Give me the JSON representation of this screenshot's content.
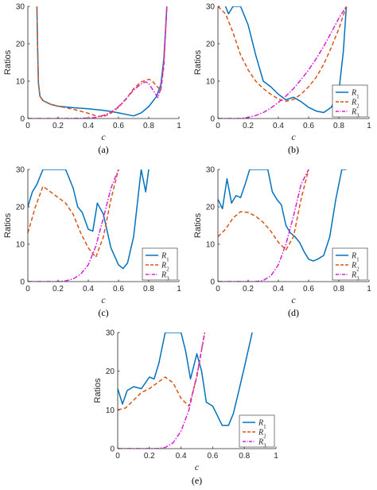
{
  "colors": {
    "R1": "#0072BD",
    "R2": "#D95319",
    "R3": "#D622D6",
    "axis": "#262626"
  },
  "chart_data": [
    {
      "panel": "(a)",
      "type": "line",
      "xlabel": "c",
      "ylabel": "Ratios",
      "xlim": [
        0,
        1
      ],
      "ylim": [
        0,
        30
      ],
      "xticks": [
        "0",
        "0.2",
        "0.4",
        "0.6",
        "0.8",
        "1"
      ],
      "yticks": [
        "0",
        "10",
        "20",
        "30"
      ],
      "legend": null,
      "series": [
        {
          "name": "R1",
          "x": [
            0.06,
            0.065,
            0.07,
            0.08,
            0.1,
            0.15,
            0.2,
            0.3,
            0.4,
            0.5,
            0.55,
            0.6,
            0.65,
            0.7,
            0.75,
            0.8,
            0.85,
            0.88,
            0.9,
            0.92
          ],
          "y": [
            30,
            18,
            9.5,
            6,
            4.8,
            3.8,
            3.3,
            2.9,
            2.6,
            2.2,
            1.9,
            1.5,
            1.1,
            0.7,
            1.5,
            3.2,
            5.8,
            9,
            16,
            30
          ]
        },
        {
          "name": "R2",
          "x": [
            0.06,
            0.065,
            0.07,
            0.08,
            0.1,
            0.15,
            0.2,
            0.3,
            0.4,
            0.45,
            0.5,
            0.55,
            0.6,
            0.65,
            0.7,
            0.75,
            0.8,
            0.82,
            0.85,
            0.88,
            0.9,
            0.92
          ],
          "y": [
            30,
            18,
            9.5,
            6,
            4.8,
            3.8,
            3.3,
            2.5,
            1.4,
            0.7,
            0.5,
            1.4,
            3,
            5.2,
            8,
            9.8,
            10.5,
            10.2,
            8.8,
            7.5,
            14,
            30
          ]
        },
        {
          "name": "R3",
          "x": [
            0,
            0.2,
            0.3,
            0.4,
            0.45,
            0.5,
            0.55,
            0.6,
            0.65,
            0.7,
            0.75,
            0.78,
            0.8,
            0.83,
            0.86,
            0.88,
            0.9,
            0.92
          ],
          "y": [
            0,
            0,
            0.02,
            0.1,
            0.3,
            0.8,
            1.7,
            3.2,
            5.3,
            7.6,
            9.3,
            9.8,
            9.4,
            7.5,
            5.6,
            8,
            15,
            30
          ]
        }
      ]
    },
    {
      "panel": "(b)",
      "type": "line",
      "xlabel": "c",
      "ylabel": "Ratios",
      "xlim": [
        0,
        1
      ],
      "ylim": [
        0,
        30
      ],
      "xticks": [
        "0",
        "0.2",
        "0.4",
        "0.6",
        "0.8",
        "1"
      ],
      "yticks": [
        "0",
        "10",
        "20",
        "30"
      ],
      "legend": "bottom-right",
      "series": [
        {
          "name": "R1",
          "x": [
            0.05,
            0.07,
            0.1,
            0.15,
            0.2,
            0.25,
            0.3,
            0.35,
            0.4,
            0.45,
            0.5,
            0.55,
            0.6,
            0.65,
            0.7,
            0.75,
            0.8,
            0.83,
            0.85
          ],
          "y": [
            30,
            28,
            30,
            30,
            25,
            17,
            10,
            8.5,
            6.5,
            5,
            5.7,
            4.5,
            3,
            2,
            1.6,
            3,
            7,
            18,
            30
          ]
        },
        {
          "name": "R2",
          "x": [
            0,
            0.05,
            0.1,
            0.15,
            0.2,
            0.25,
            0.3,
            0.35,
            0.4,
            0.45,
            0.5,
            0.55,
            0.6,
            0.65,
            0.7,
            0.75,
            0.8,
            0.85
          ],
          "y": [
            30,
            28,
            23,
            17,
            13,
            10,
            8,
            6.5,
            5.2,
            4.6,
            5.1,
            6.5,
            8.5,
            11,
            14.5,
            19,
            24,
            30
          ]
        },
        {
          "name": "R3",
          "x": [
            0,
            0.15,
            0.2,
            0.25,
            0.3,
            0.35,
            0.4,
            0.45,
            0.5,
            0.55,
            0.6,
            0.65,
            0.7,
            0.75,
            0.8,
            0.85
          ],
          "y": [
            0,
            0,
            0.3,
            0.8,
            1.6,
            2.8,
            4.3,
            6,
            8,
            10.4,
            13,
            16,
            19.3,
            23,
            26.8,
            30
          ]
        }
      ]
    },
    {
      "panel": "(c)",
      "type": "line",
      "xlabel": "c",
      "ylabel": "Ratios",
      "xlim": [
        0,
        1
      ],
      "ylim": [
        0,
        30
      ],
      "xticks": [
        "0",
        "0.2",
        "0.4",
        "0.6",
        "0.8",
        "1"
      ],
      "yticks": [
        "0",
        "10",
        "20",
        "30"
      ],
      "legend": "bottom-right",
      "series": [
        {
          "name": "R1",
          "x": [
            0,
            0.03,
            0.06,
            0.1,
            0.15,
            0.2,
            0.25,
            0.3,
            0.33,
            0.36,
            0.4,
            0.43,
            0.46,
            0.5,
            0.55,
            0.6,
            0.63,
            0.66,
            0.7,
            0.75,
            0.78,
            0.8
          ],
          "y": [
            20,
            24,
            26,
            30,
            30,
            30,
            30,
            25,
            20,
            18.5,
            14,
            13.5,
            21,
            18,
            9,
            4.5,
            3.5,
            5,
            12,
            30,
            24,
            30
          ]
        },
        {
          "name": "R2",
          "x": [
            0,
            0.05,
            0.1,
            0.15,
            0.2,
            0.25,
            0.3,
            0.35,
            0.4,
            0.45,
            0.5,
            0.55,
            0.6
          ],
          "y": [
            13,
            20,
            25.5,
            24,
            22.5,
            21,
            18,
            13,
            9,
            6.5,
            12,
            22,
            30
          ]
        },
        {
          "name": "R3",
          "x": [
            0,
            0.2,
            0.25,
            0.3,
            0.35,
            0.4,
            0.45,
            0.5,
            0.55,
            0.6
          ],
          "y": [
            0,
            0,
            0.2,
            0.7,
            2,
            4.5,
            9.5,
            17,
            25,
            30
          ]
        }
      ]
    },
    {
      "panel": "(d)",
      "type": "line",
      "xlabel": "c",
      "ylabel": "Ratios",
      "xlim": [
        0,
        1
      ],
      "ylim": [
        0,
        30
      ],
      "xticks": [
        "0",
        "0.2",
        "0.4",
        "0.6",
        "0.8",
        "1"
      ],
      "yticks": [
        "0",
        "10",
        "20",
        "30"
      ],
      "legend": "bottom-right",
      "series": [
        {
          "name": "R1",
          "x": [
            0,
            0.03,
            0.06,
            0.09,
            0.12,
            0.15,
            0.18,
            0.21,
            0.24,
            0.27,
            0.3,
            0.33,
            0.36,
            0.39,
            0.42,
            0.45,
            0.48,
            0.51,
            0.54,
            0.57,
            0.6,
            0.63,
            0.66,
            0.7,
            0.74,
            0.78,
            0.82,
            0.85
          ],
          "y": [
            22,
            19.5,
            27.5,
            21,
            23,
            22.5,
            26,
            30,
            30,
            30,
            30,
            30,
            24,
            22,
            20.5,
            15,
            13,
            12,
            10.5,
            8,
            6,
            5.5,
            6,
            7,
            12,
            22,
            30,
            30
          ]
        },
        {
          "name": "R2",
          "x": [
            0,
            0.05,
            0.1,
            0.15,
            0.2,
            0.25,
            0.3,
            0.35,
            0.4,
            0.45,
            0.5,
            0.55,
            0.6
          ],
          "y": [
            12,
            14,
            17,
            18.7,
            18.5,
            17.5,
            15.8,
            13.5,
            10.5,
            8.5,
            12,
            22,
            30
          ]
        },
        {
          "name": "R3",
          "x": [
            0,
            0.25,
            0.3,
            0.35,
            0.4,
            0.45,
            0.5,
            0.55,
            0.6
          ],
          "y": [
            0,
            0,
            0.3,
            1.5,
            4.5,
            10,
            17.5,
            26,
            30
          ]
        }
      ]
    },
    {
      "panel": "(e)",
      "type": "line",
      "xlabel": "c",
      "ylabel": "Ratios",
      "xlim": [
        0,
        1
      ],
      "ylim": [
        0,
        30
      ],
      "xticks": [
        "0",
        "0.2",
        "0.4",
        "0.6",
        "0.8",
        "1"
      ],
      "yticks": [
        "0",
        "10",
        "20",
        "30"
      ],
      "legend": "bottom-right",
      "series": [
        {
          "name": "R1",
          "x": [
            0,
            0.03,
            0.06,
            0.1,
            0.15,
            0.2,
            0.23,
            0.26,
            0.3,
            0.33,
            0.36,
            0.4,
            0.43,
            0.46,
            0.5,
            0.53,
            0.56,
            0.6,
            0.63,
            0.66,
            0.7,
            0.73,
            0.76,
            0.8,
            0.85
          ],
          "y": [
            15.5,
            11.5,
            15,
            16,
            15.5,
            18.5,
            18,
            22,
            30,
            30,
            30,
            30,
            25,
            18,
            24.5,
            20,
            12,
            11,
            8.5,
            6,
            6,
            9,
            14,
            21,
            30
          ]
        },
        {
          "name": "R2",
          "x": [
            0,
            0.05,
            0.1,
            0.15,
            0.2,
            0.25,
            0.3,
            0.35,
            0.4,
            0.45,
            0.5,
            0.55
          ],
          "y": [
            10,
            10.5,
            12.5,
            14.5,
            15.5,
            17,
            18.5,
            17,
            13,
            11,
            18.5,
            30
          ]
        },
        {
          "name": "R3",
          "x": [
            0,
            0.25,
            0.3,
            0.35,
            0.4,
            0.45,
            0.5,
            0.55
          ],
          "y": [
            0,
            0,
            0.3,
            1.5,
            4.5,
            10,
            19,
            30
          ]
        }
      ]
    }
  ],
  "legend_labels": [
    "R1",
    "R2",
    "R3"
  ]
}
